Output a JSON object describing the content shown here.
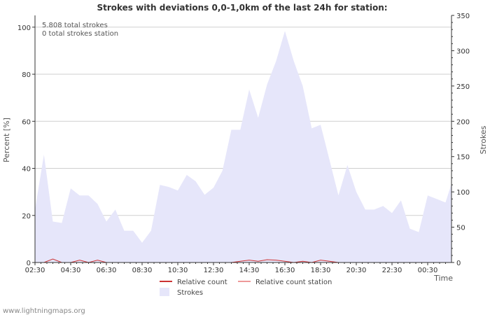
{
  "chart_data": {
    "type": "area",
    "title": "Strokes with deviations 0,0-1,0km of the last 24h for station:",
    "xlabel": "Time",
    "ylabel_left": "Percent   [%]",
    "ylabel_right": "Strokes",
    "ylim_left": [
      0,
      105
    ],
    "ylim_right": [
      0,
      350
    ],
    "yticks_left": [
      0,
      20,
      40,
      60,
      80,
      100
    ],
    "yticks_right": [
      0,
      50,
      100,
      150,
      200,
      250,
      300,
      350
    ],
    "x_range": [
      0,
      70
    ],
    "xticks": [
      {
        "x": 0,
        "label": "02:30"
      },
      {
        "x": 6,
        "label": "04:30"
      },
      {
        "x": 12,
        "label": "06:30"
      },
      {
        "x": 18,
        "label": "08:30"
      },
      {
        "x": 24,
        "label": "10:30"
      },
      {
        "x": 30,
        "label": "12:30"
      },
      {
        "x": 36,
        "label": "14:30"
      },
      {
        "x": 42,
        "label": "16:30"
      },
      {
        "x": 48,
        "label": "18:30"
      },
      {
        "x": 54,
        "label": "20:30"
      },
      {
        "x": 60,
        "label": "22:30"
      },
      {
        "x": 66,
        "label": "00:30"
      }
    ],
    "annotations": [
      "5.808 total strokes",
      "0 total strokes station"
    ],
    "series": [
      {
        "name": "Strokes",
        "axis": "right",
        "color": "#e6e6fa",
        "x": [
          0,
          1.5,
          3,
          4.5,
          6,
          7.5,
          9,
          10.5,
          12,
          13.5,
          15,
          16.5,
          18,
          19.5,
          21,
          22.5,
          24,
          25.5,
          27,
          28.5,
          30,
          31.5,
          33,
          34.5,
          36,
          37.5,
          39,
          40.5,
          42,
          43.5,
          45,
          46.5,
          48,
          49.5,
          51,
          52.5,
          54,
          55.5,
          57,
          58.5,
          60,
          61.5,
          63,
          64.5,
          66,
          67.5,
          69,
          70
        ],
        "values": [
          75,
          153,
          58,
          56,
          105,
          95,
          95,
          83,
          58,
          75,
          45,
          45,
          28,
          45,
          110,
          107,
          102,
          124,
          115,
          96,
          106,
          130,
          188,
          188,
          245,
          205,
          252,
          285,
          328,
          285,
          250,
          190,
          195,
          145,
          95,
          138,
          100,
          75,
          75,
          80,
          70,
          88,
          48,
          43,
          95,
          90,
          85,
          112
        ]
      },
      {
        "name": "Relative count",
        "axis": "left",
        "color": "#cc3333",
        "x": [
          0,
          1.5,
          3,
          4.5,
          6,
          7.5,
          9,
          10.5,
          12,
          13.5,
          15,
          16.5,
          18,
          19.5,
          21,
          22.5,
          24,
          25.5,
          27,
          28.5,
          30,
          31.5,
          33,
          34.5,
          36,
          37.5,
          39,
          40.5,
          42,
          43.5,
          45,
          46.5,
          48,
          49.5,
          51,
          52.5,
          54,
          55.5,
          57,
          58.5,
          60,
          61.5,
          63,
          64.5,
          66,
          67.5,
          69,
          70
        ],
        "values": [
          0,
          0,
          1.5,
          0,
          0,
          1,
          0,
          1,
          0,
          0,
          0,
          0,
          0,
          0,
          0,
          0,
          0,
          0,
          0,
          0,
          0,
          0,
          0,
          0.5,
          1,
          0.5,
          1.2,
          1,
          0.5,
          0,
          0.5,
          0,
          1,
          0.5,
          0,
          0,
          0,
          0,
          0,
          0,
          0,
          0,
          0,
          0,
          0,
          0,
          0,
          0
        ]
      },
      {
        "name": "Relative count station",
        "axis": "left",
        "color": "#ee9999",
        "x": [
          0,
          70
        ],
        "values": [
          0,
          0
        ]
      }
    ],
    "legend": [
      "Relative count",
      "Relative count station",
      "Strokes"
    ]
  },
  "footer": {
    "credit": "www.lightningmaps.org"
  }
}
